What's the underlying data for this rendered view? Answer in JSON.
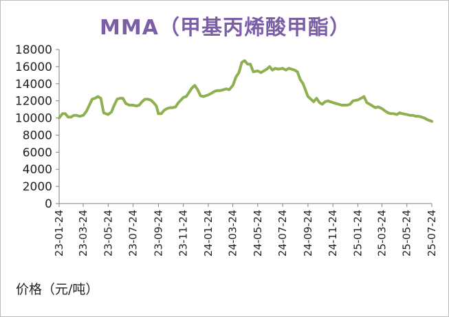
{
  "chart_data": {
    "type": "line",
    "title": "MMA（甲基丙烯酸甲酯）",
    "ylabel": "价格（元/吨）",
    "ylim": [
      0,
      18000
    ],
    "yticks": [
      0,
      2000,
      4000,
      6000,
      8000,
      10000,
      12000,
      14000,
      16000,
      18000
    ],
    "ytick_labels": [
      "0",
      "2000",
      "4000",
      "6000",
      "8000",
      "10000",
      "12000",
      "14000",
      "16000",
      "18000"
    ],
    "xticks": [
      "23-01-24",
      "23-03-24",
      "23-05-24",
      "23-07-24",
      "23-09-24",
      "23-11-24",
      "24-01-24",
      "24-03-24",
      "24-05-24",
      "24-07-24",
      "24-09-24",
      "24-11-24",
      "25-01-24",
      "25-03-24",
      "25-05-24",
      "25-07-24"
    ],
    "grid": false,
    "line_color": "#8db050",
    "series": [
      {
        "x": [
          "2023-01-24",
          "2023-02-01",
          "2023-02-08",
          "2023-02-15",
          "2023-02-22",
          "2023-03-01",
          "2023-03-08",
          "2023-03-15",
          "2023-03-24",
          "2023-04-01",
          "2023-04-08",
          "2023-04-15",
          "2023-04-22",
          "2023-04-29",
          "2023-05-06",
          "2023-05-13",
          "2023-05-24",
          "2023-06-01",
          "2023-06-08",
          "2023-06-15",
          "2023-06-22",
          "2023-06-29",
          "2023-07-06",
          "2023-07-15",
          "2023-07-24",
          "2023-08-01",
          "2023-08-08",
          "2023-08-15",
          "2023-08-22",
          "2023-08-29",
          "2023-09-05",
          "2023-09-12",
          "2023-09-19",
          "2023-09-24",
          "2023-10-01",
          "2023-10-08",
          "2023-10-15",
          "2023-10-22",
          "2023-10-29",
          "2023-11-05",
          "2023-11-12",
          "2023-11-24",
          "2023-12-01",
          "2023-12-08",
          "2023-12-15",
          "2023-12-22",
          "2023-12-29",
          "2024-01-05",
          "2024-01-12",
          "2024-01-24",
          "2024-02-01",
          "2024-02-08",
          "2024-02-15",
          "2024-02-22",
          "2024-03-01",
          "2024-03-08",
          "2024-03-15",
          "2024-03-24",
          "2024-04-01",
          "2024-04-08",
          "2024-04-15",
          "2024-04-22",
          "2024-04-29",
          "2024-05-06",
          "2024-05-13",
          "2024-05-24",
          "2024-06-01",
          "2024-06-08",
          "2024-06-15",
          "2024-06-22",
          "2024-06-29",
          "2024-07-06",
          "2024-07-13",
          "2024-07-24",
          "2024-08-01",
          "2024-08-08",
          "2024-08-15",
          "2024-08-22",
          "2024-08-29",
          "2024-09-05",
          "2024-09-12",
          "2024-09-24",
          "2024-10-01",
          "2024-10-08",
          "2024-10-15",
          "2024-10-22",
          "2024-10-29",
          "2024-11-05",
          "2024-11-12",
          "2024-11-24",
          "2024-12-01",
          "2024-12-08",
          "2024-12-15",
          "2024-12-22",
          "2024-12-29",
          "2025-01-05",
          "2025-01-12",
          "2025-01-24",
          "2025-02-01",
          "2025-02-08",
          "2025-02-15",
          "2025-02-22",
          "2025-03-01",
          "2025-03-08",
          "2025-03-15",
          "2025-03-24",
          "2025-04-01",
          "2025-04-08",
          "2025-04-15",
          "2025-04-22",
          "2025-04-29",
          "2025-05-06",
          "2025-05-13",
          "2025-05-24",
          "2025-06-01",
          "2025-06-08",
          "2025-06-15",
          "2025-06-22",
          "2025-06-29",
          "2025-07-06",
          "2025-07-13",
          "2025-07-24"
        ],
        "values": [
          10000,
          10500,
          10500,
          10100,
          10100,
          10300,
          10300,
          10200,
          10300,
          10800,
          11500,
          12200,
          12300,
          12500,
          12300,
          10600,
          10400,
          10700,
          11500,
          12200,
          12300,
          12300,
          11700,
          11500,
          11500,
          11400,
          11500,
          11900,
          12200,
          12200,
          12100,
          11800,
          11400,
          10500,
          10500,
          10900,
          11100,
          11200,
          11200,
          11300,
          11800,
          12400,
          12500,
          13000,
          13500,
          13800,
          13300,
          12600,
          12500,
          12700,
          12900,
          13100,
          13200,
          13200,
          13300,
          13400,
          13300,
          13800,
          14800,
          15300,
          16500,
          16700,
          16300,
          16300,
          15400,
          15500,
          15300,
          15500,
          15700,
          16000,
          15600,
          15800,
          15700,
          15800,
          15600,
          15800,
          15700,
          15600,
          15400,
          14500,
          14000,
          12500,
          12200,
          11900,
          12300,
          11800,
          11600,
          11900,
          12000,
          11800,
          11700,
          11600,
          11500,
          11500,
          11500,
          11600,
          12000,
          12100,
          12300,
          12500,
          11800,
          11600,
          11400,
          11200,
          11300,
          11100,
          10800,
          10600,
          10500,
          10500,
          10400,
          10600,
          10500,
          10400,
          10300,
          10300,
          10200,
          10200,
          10100,
          10000,
          9800,
          9600
        ]
      }
    ]
  }
}
